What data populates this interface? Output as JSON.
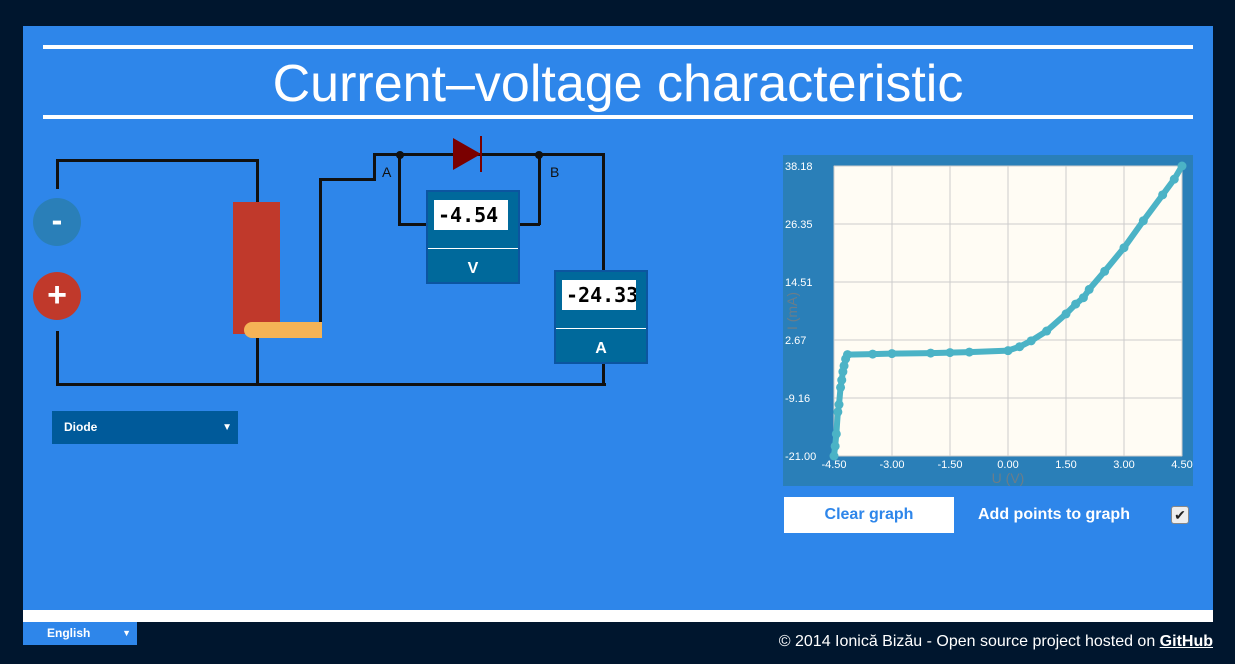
{
  "title": "Current–voltage characteristic",
  "circuit": {
    "minus_label": "-",
    "plus_label": "+",
    "node_a": "A",
    "node_b": "B",
    "voltmeter": {
      "value": "-4.54",
      "unit": "V"
    },
    "ammeter": {
      "value": "-24.33",
      "unit": "A"
    },
    "component_select": "Diode"
  },
  "controls": {
    "clear_graph": "Clear graph",
    "add_points": "Add points to graph",
    "add_points_checked": true
  },
  "footer": {
    "language": "English",
    "copyright": "© 2014 Ionică Bizău - Open source project hosted on ",
    "link": "GitHub"
  },
  "colors": {
    "panel": "#2e86ea",
    "background": "#00162e",
    "series": "#4bb3c6",
    "resistor": "#c0392b",
    "slider": "#f5b356",
    "diode": "#7a0000"
  },
  "chart_data": {
    "type": "scatter",
    "xlabel": "U (V)",
    "ylabel": "I (mA)",
    "xlim": [
      -4.5,
      4.5
    ],
    "ylim": [
      -21.0,
      38.18
    ],
    "xticks": [
      "-4.50",
      "-3.00",
      "-1.50",
      "0.00",
      "1.50",
      "3.00",
      "4.50"
    ],
    "yticks": [
      "38.18",
      "26.35",
      "14.51",
      "2.67",
      "-9.16",
      "-21.00"
    ],
    "grid": true,
    "x": [
      -4.5,
      -4.47,
      -4.44,
      -4.4,
      -4.37,
      -4.33,
      -4.3,
      -4.27,
      -4.24,
      -4.2,
      -4.15,
      -3.5,
      -3,
      -2,
      -1.5,
      -1,
      0,
      0.3,
      0.6,
      1,
      1.5,
      1.75,
      1.95,
      2.1,
      2.5,
      3,
      3.5,
      4,
      4.3,
      4.5
    ],
    "y": [
      -21,
      -19,
      -16.5,
      -12,
      -10.5,
      -7,
      -5.5,
      -3.8,
      -2.6,
      -1.2,
      -0.3,
      -0.2,
      -0.1,
      0,
      0.1,
      0.2,
      0.5,
      1.3,
      2.5,
      4.5,
      8,
      10,
      11.3,
      13,
      16.7,
      21.5,
      27,
      32.3,
      35.5,
      38.18
    ]
  }
}
